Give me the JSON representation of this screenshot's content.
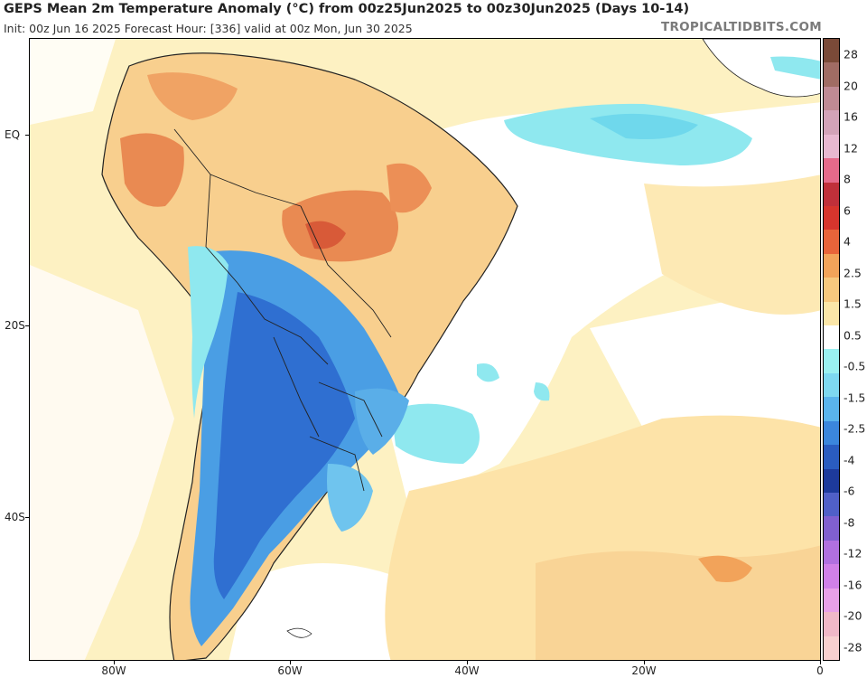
{
  "header": {
    "title": "GEPS Mean 2m Temperature Anomaly (°C) from 00z25Jun2025 to 00z30Jun2025 (Days 10-14)",
    "subtitle": "Init: 00z Jun 16 2025   Forecast Hour: [336]   valid at 00z Mon, Jun 30 2025",
    "brand": "TROPICALTIDBITS.COM"
  },
  "axes": {
    "lat_labels": [
      "EQ",
      "20S",
      "40S"
    ],
    "lon_labels": [
      "80W",
      "60W",
      "40W",
      "20W",
      "0"
    ]
  },
  "legend": {
    "labels": [
      "28",
      "20",
      "16",
      "12",
      "8",
      "6",
      "4",
      "2.5",
      "1.5",
      "0.5",
      "-0.5",
      "-1.5",
      "-2.5",
      "-4",
      "-6",
      "-8",
      "-12",
      "-16",
      "-20",
      "-28"
    ],
    "colors": [
      "#7a4a38",
      "#a06c64",
      "#bf8a94",
      "#d3a3b8",
      "#e8b8d0",
      "#e56a8a",
      "#c0303a",
      "#d7352d",
      "#e8643a",
      "#f2a35a",
      "#f7c87e",
      "#fbe6a8",
      "#ffffff",
      "#9af0f0",
      "#7ed8f0",
      "#5ab4ec",
      "#3b86dc",
      "#2a5cc0",
      "#1d3a9c",
      "#5060c8",
      "#8060d0",
      "#b070e0",
      "#d080e8",
      "#e8a0e8",
      "#f0b8c8",
      "#f8d0d0"
    ]
  },
  "colors": {
    "ocean_neutral": "#fdf1c2",
    "warm_light": "#f8cf8e",
    "warm_mid": "#f1a35c",
    "warm_strong": "#e2673e",
    "cold_light": "#8fe8ef",
    "cold_mid": "#4a9ee4",
    "cold_strong": "#2f6fd1",
    "border_line": "#111111"
  }
}
